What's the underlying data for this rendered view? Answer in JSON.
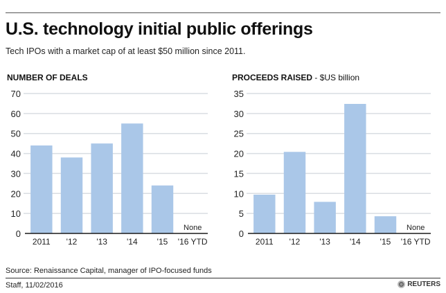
{
  "header": {
    "title": "U.S. technology initial public offerings",
    "subtitle": "Tech IPOs with a market cap of at least $50 million since 2011."
  },
  "footer": {
    "source": "Source: Renaissance Capital, manager of IPO-focused funds",
    "credit": "Staff, 11/02/2016",
    "brand": "REUTERS",
    "brand_icon": "reuters-logo-icon"
  },
  "colors": {
    "bar": "#aac7e8",
    "grid": "#d9dde2",
    "axis": "#1a1a1a"
  },
  "chart_data": [
    {
      "type": "bar",
      "title": "NUMBER OF DEALS",
      "unit_label": "",
      "xlabel": "",
      "ylabel": "",
      "categories": [
        "2011",
        "'12",
        "'13",
        "'14",
        "'15",
        "'16 YTD"
      ],
      "values": [
        44,
        38,
        45,
        55,
        24,
        0
      ],
      "annotations": [
        {
          "category": "'16 YTD",
          "text": "None"
        }
      ],
      "ylim": [
        0,
        70
      ],
      "yticks": [
        0,
        10,
        20,
        30,
        40,
        50,
        60,
        70
      ],
      "grid": true,
      "legend": "none"
    },
    {
      "type": "bar",
      "title": "PROCEEDS RAISED",
      "unit_label": " - $US billion",
      "xlabel": "",
      "ylabel": "$US billion",
      "categories": [
        "2011",
        "'12",
        "'13",
        "'14",
        "'15",
        "'16 YTD"
      ],
      "values": [
        9.7,
        20.4,
        7.9,
        32.4,
        4.3,
        0
      ],
      "annotations": [
        {
          "category": "'16 YTD",
          "text": "None"
        }
      ],
      "ylim": [
        0,
        35
      ],
      "yticks": [
        0,
        5,
        10,
        15,
        20,
        25,
        30,
        35
      ],
      "grid": true,
      "legend": "none"
    }
  ]
}
